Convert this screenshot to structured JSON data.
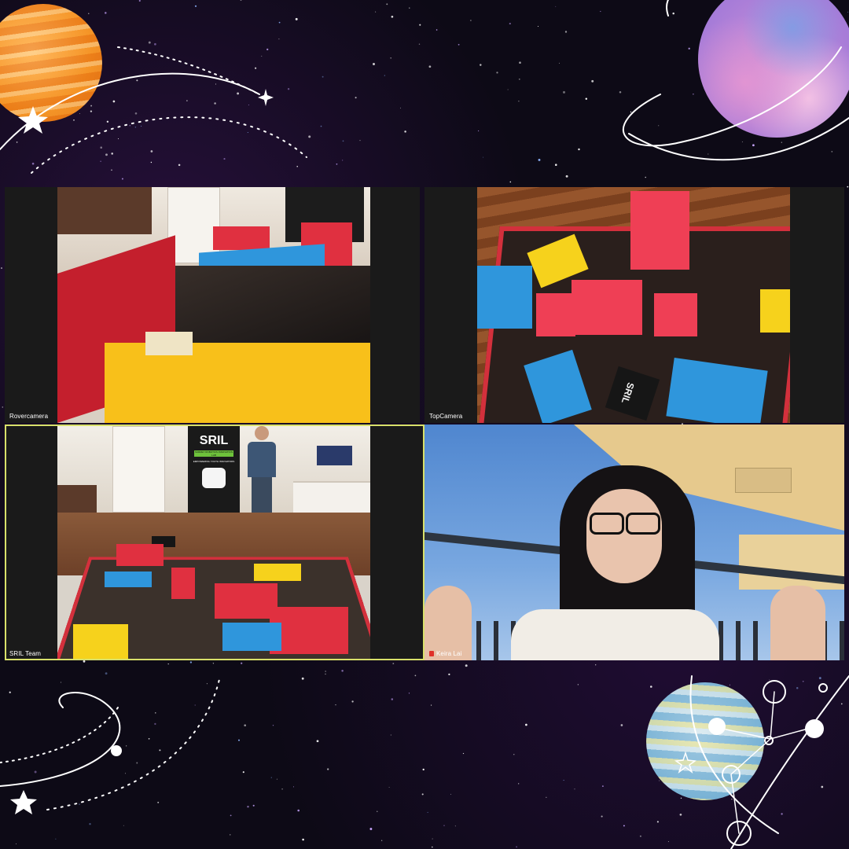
{
  "meeting": {
    "participants": [
      {
        "name": "Rovercamera"
      },
      {
        "name": "TopCamera"
      },
      {
        "name": "SRIL Team"
      },
      {
        "name": "Keira Lai"
      }
    ]
  },
  "banner": {
    "logo": "SRIL",
    "line1": "SURREY ROBOTICS INNOVATION LAB",
    "tagline": "EMPOWERING YOUTH INNOVATORS"
  },
  "robot_tag": "SRIL",
  "colors": {
    "active_speaker_border": "#d8e06a",
    "block_red": "#e03040",
    "pad_yellow": "#f6d21c",
    "pad_blue": "#2f96dc",
    "tile_bg": "#1a1a1a"
  },
  "icons": [
    "muted-mic-icon",
    "star-icon",
    "planet-icon"
  ]
}
